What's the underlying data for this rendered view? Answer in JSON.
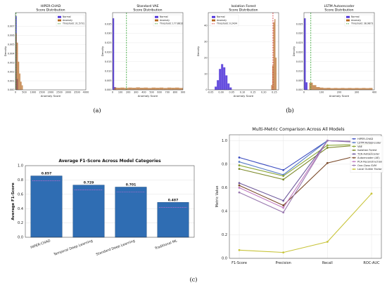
{
  "panel_labels": [
    "(a)",
    "(b)",
    "(c)"
  ],
  "chart_data": [
    {
      "id": "hiper",
      "type": "histogram",
      "title": "HIPER-CHAD",
      "subtitle": "Score Distribution",
      "xlabel": "Anomaly Score",
      "ylabel": "Density",
      "xlim": [
        0,
        4000
      ],
      "ylim": [
        0,
        0.0085
      ],
      "xticks": [
        "0",
        "500",
        "1000",
        "1500",
        "2000",
        "2500",
        "3000",
        "3500",
        "4000"
      ],
      "yticks": [
        "0.000",
        "0.001",
        "0.002",
        "0.003",
        "0.004",
        "0.005",
        "0.006",
        "0.007"
      ],
      "ytick_values": [
        0,
        0.001,
        0.002,
        0.003,
        0.004,
        0.005,
        0.006,
        0.007
      ],
      "legend": [
        "Normal",
        "Anomaly",
        "Threshold: 31.5731"
      ],
      "threshold": 31.5731,
      "series": [
        {
          "name": "Normal",
          "color": "#4b2fd8",
          "bins": [
            [
              0,
              70,
              0.0081
            ],
            [
              70,
              140,
              0.0012
            ]
          ]
        },
        {
          "name": "Anomaly",
          "color": "#b4651d",
          "bins": [
            [
              0,
              70,
              0.0062
            ],
            [
              70,
              140,
              0.0052
            ],
            [
              140,
              210,
              0.0031
            ],
            [
              210,
              280,
              0.0018
            ],
            [
              280,
              350,
              0.0009
            ],
            [
              350,
              420,
              0.0005
            ]
          ]
        }
      ]
    },
    {
      "id": "vae",
      "type": "histogram",
      "title": "Standard VAE",
      "subtitle": "Score Distribution",
      "xlabel": "Anomaly Score",
      "ylabel": "Density",
      "xlim": [
        0,
        900
      ],
      "ylim": [
        0,
        0.041
      ],
      "xticks": [
        "0",
        "100",
        "200",
        "300",
        "400",
        "500",
        "600",
        "700",
        "800",
        "900"
      ],
      "yticks": [
        "0.000",
        "0.005",
        "0.010",
        "0.015",
        "0.020",
        "0.025",
        "0.030",
        "0.035"
      ],
      "ytick_values": [
        0,
        0.005,
        0.01,
        0.015,
        0.02,
        0.025,
        0.03,
        0.035
      ],
      "legend": [
        "Normal",
        "Anomaly",
        "Threshold: 177.8810"
      ],
      "threshold": 177.881,
      "series": [
        {
          "name": "Normal",
          "color": "#4b2fd8",
          "bins": [
            [
              0,
              20,
              0.038
            ],
            [
              20,
              40,
              0.0015
            ]
          ]
        },
        {
          "name": "Anomaly",
          "color": "#b4651d",
          "bins": [
            [
              20,
              60,
              0.0012
            ],
            [
              60,
              100,
              0.0011
            ],
            [
              100,
              150,
              0.0012
            ],
            [
              150,
              200,
              0.001
            ],
            [
              200,
              250,
              0.0012
            ],
            [
              250,
              300,
              0.0011
            ],
            [
              300,
              350,
              0.0013
            ],
            [
              350,
              400,
              0.0011
            ],
            [
              400,
              450,
              0.0012
            ],
            [
              450,
              500,
              0.001
            ],
            [
              500,
              550,
              0.0012
            ],
            [
              550,
              600,
              0.0011
            ],
            [
              600,
              650,
              0.0012
            ],
            [
              650,
              700,
              0.001
            ],
            [
              700,
              750,
              0.0012
            ],
            [
              750,
              800,
              0.0011
            ],
            [
              800,
              850,
              0.0012
            ],
            [
              850,
              900,
              0.001
            ]
          ]
        }
      ]
    },
    {
      "id": "iforest",
      "type": "histogram",
      "title": "Isolation Forest",
      "subtitle": "Score Distribution",
      "xlabel": "Anomaly Score",
      "ylabel": "Density",
      "xlim": [
        -0.06,
        0.27
      ],
      "ylim": [
        0,
        48
      ],
      "xticks": [
        "-0.05",
        "0.00",
        "0.05",
        "0.10",
        "0.15",
        "0.20",
        "0.25"
      ],
      "xtick_values": [
        -0.05,
        0.0,
        0.05,
        0.1,
        0.15,
        0.2,
        0.25
      ],
      "yticks": [
        "0",
        "10",
        "20",
        "30",
        "40"
      ],
      "ytick_values": [
        0,
        10,
        20,
        30,
        40
      ],
      "legend": [
        "Normal",
        "Anomaly",
        "Threshold: 0.2434"
      ],
      "threshold": 0.2434,
      "series": [
        {
          "name": "Normal",
          "color": "#4b2fd8",
          "bins": [
            [
              -0.03,
              -0.02,
              2
            ],
            [
              -0.02,
              -0.01,
              6
            ],
            [
              -0.01,
              0.0,
              13
            ],
            [
              0.0,
              0.01,
              16
            ],
            [
              0.01,
              0.02,
              14
            ],
            [
              0.02,
              0.03,
              9
            ],
            [
              0.03,
              0.04,
              4
            ],
            [
              0.04,
              0.05,
              1.5
            ]
          ]
        },
        {
          "name": "Anomaly",
          "color": "#b4651d",
          "bins": [
            [
              0.235,
              0.24,
              3
            ],
            [
              0.24,
              0.245,
              15
            ],
            [
              0.245,
              0.25,
              42
            ],
            [
              0.25,
              0.255,
              44
            ],
            [
              0.255,
              0.26,
              20
            ]
          ]
        }
      ]
    },
    {
      "id": "lstm",
      "type": "histogram",
      "title": "LSTM Autoencoder",
      "subtitle": "Score Distribution",
      "xlabel": "Anomaly Score",
      "ylabel": "Density",
      "xlim": [
        0,
        400
      ],
      "ylim": [
        0,
        0.041
      ],
      "xticks": [
        "0",
        "100",
        "200",
        "300",
        "400"
      ],
      "yticks": [
        "0.000",
        "0.005",
        "0.010",
        "0.015",
        "0.020",
        "0.025",
        "0.030",
        "0.035"
      ],
      "ytick_values": [
        0,
        0.005,
        0.01,
        0.015,
        0.02,
        0.025,
        0.03,
        0.035
      ],
      "legend": [
        "Normal",
        "Anomaly",
        "Threshold: 38.9873"
      ],
      "threshold": 38.9873,
      "series": [
        {
          "name": "Normal",
          "color": "#4b2fd8",
          "bins": [
            [
              0,
              10,
              0.038
            ],
            [
              10,
              20,
              0.004
            ]
          ]
        },
        {
          "name": "Anomaly",
          "color": "#b4651d",
          "bins": [
            [
              30,
              50,
              0.0038
            ],
            [
              50,
              70,
              0.0025
            ],
            [
              70,
              90,
              0.0015
            ],
            [
              90,
              110,
              0.0012
            ],
            [
              110,
              130,
              0.001
            ],
            [
              130,
              150,
              0.0011
            ],
            [
              150,
              170,
              0.0009
            ],
            [
              170,
              190,
              0.001
            ],
            [
              190,
              210,
              0.0009
            ],
            [
              210,
              230,
              0.001
            ],
            [
              230,
              250,
              0.0009
            ],
            [
              250,
              270,
              0.001
            ],
            [
              270,
              290,
              0.0009
            ],
            [
              290,
              310,
              0.001
            ],
            [
              310,
              330,
              0.0009
            ],
            [
              330,
              350,
              0.001
            ],
            [
              350,
              370,
              0.0009
            ],
            [
              370,
              390,
              0.001
            ]
          ]
        }
      ]
    },
    {
      "id": "f1bar",
      "type": "bar",
      "title": "Average F1-Score Across Model Categories",
      "ylabel": "Average F1-Score",
      "ylim": [
        0,
        1.0
      ],
      "yticks": [
        "0.0",
        "0.2",
        "0.4",
        "0.6",
        "0.8",
        "1.0"
      ],
      "ytick_values": [
        0,
        0.2,
        0.4,
        0.6,
        0.8,
        1.0
      ],
      "categories": [
        "HIPER-CHAD",
        "Temporal Deep Learning",
        "Standard Deep Learning",
        "Traditional ML"
      ],
      "values": [
        0.857,
        0.729,
        0.701,
        0.487
      ],
      "value_labels": [
        "0.857",
        "0.729",
        "0.701",
        "0.487"
      ],
      "colors": [
        "#2f6db3",
        "#2f6db3",
        "#2f6db3",
        "#2f6db3"
      ]
    },
    {
      "id": "multi",
      "type": "line",
      "title": "Multi-Metric Comparison Across All Models",
      "ylabel": "Metric Value",
      "ylim": [
        0,
        1.05
      ],
      "yticks": [
        "0.0",
        "0.2",
        "0.4",
        "0.6",
        "0.8",
        "1.0"
      ],
      "ytick_values": [
        0,
        0.2,
        0.4,
        0.6,
        0.8,
        1.0
      ],
      "categories": [
        "F1-Score",
        "Precision",
        "Recall",
        "ROC-AUC"
      ],
      "series": [
        {
          "name": "HIPER-CHAD",
          "color": "#3b4cc0",
          "values": [
            0.857,
            0.75,
            1.0,
            0.99
          ]
        },
        {
          "name": "LSTM Autoencoder",
          "color": "#5a7ec8",
          "values": [
            0.82,
            0.71,
            1.0,
            0.985
          ]
        },
        {
          "name": "VAE",
          "color": "#8aa636",
          "values": [
            0.79,
            0.7,
            0.96,
            0.97
          ]
        },
        {
          "name": "Isolation Forest",
          "color": "#7d8a2a",
          "values": [
            0.76,
            0.67,
            0.94,
            0.97
          ]
        },
        {
          "name": "TCN Autoencoder",
          "color": "#6f5a9c",
          "values": [
            0.64,
            0.49,
            1.0,
            0.98
          ]
        },
        {
          "name": "Autoencoder (AE)",
          "color": "#7a4a2a",
          "values": [
            0.62,
            0.45,
            0.81,
            0.9
          ]
        },
        {
          "name": "PCA Reconstruction",
          "color": "#c27ac0",
          "values": [
            0.6,
            0.43,
            1.0,
            0.99
          ]
        },
        {
          "name": "One-Class SVM",
          "color": "#9a7ab0",
          "values": [
            0.56,
            0.39,
            1.0,
            0.99
          ]
        },
        {
          "name": "Local Outlier Factor",
          "color": "#c8c43a",
          "values": [
            0.07,
            0.05,
            0.14,
            0.55
          ]
        }
      ]
    }
  ]
}
